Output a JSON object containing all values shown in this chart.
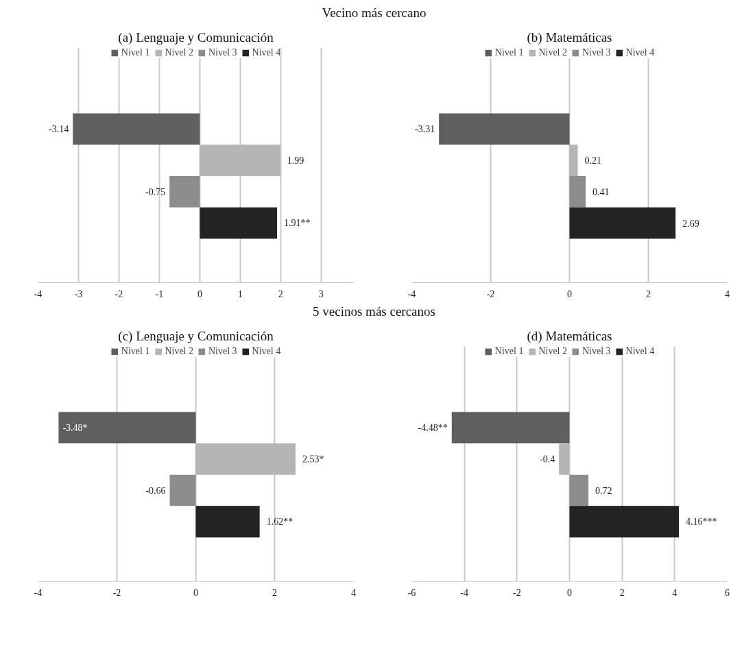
{
  "chart_data": [
    {
      "type": "bar",
      "orientation": "horizontal",
      "title": "(a) Lenguaje y Comunicación",
      "annotations": [
        "Vecino más cercano"
      ],
      "categories": [
        null
      ],
      "xlim": [
        -4,
        3.8
      ],
      "xticks": [
        -4,
        -3,
        -2,
        -1,
        0,
        1,
        2,
        3
      ],
      "grid": "x",
      "legend": "top",
      "tick_labels": "x",
      "series": [
        {
          "name": "Nivel 1",
          "color": "#5f5f5f",
          "values": [
            -3.14
          ],
          "value_labels": [
            "-3.14"
          ]
        },
        {
          "name": "Nivel 2",
          "color": "#b4b4b4",
          "values": [
            1.99
          ],
          "value_labels": [
            "1.99"
          ]
        },
        {
          "name": "Nivel 3",
          "color": "#8c8c8c",
          "values": [
            -0.75
          ],
          "value_labels": [
            "-0.75"
          ]
        },
        {
          "name": "Nivel 4",
          "color": "#232323",
          "values": [
            1.91
          ],
          "value_labels": [
            "1.91**"
          ]
        }
      ]
    },
    {
      "type": "bar",
      "orientation": "horizontal",
      "title": "(b) Matemáticas",
      "categories": [
        null
      ],
      "xlim": [
        -4,
        4
      ],
      "xticks": [
        -4,
        -2,
        0,
        2,
        4
      ],
      "grid": "x",
      "legend": "top",
      "tick_labels": "x",
      "series": [
        {
          "name": "Nivel 1",
          "color": "#5f5f5f",
          "values": [
            -3.31
          ],
          "value_labels": [
            "-3.31"
          ]
        },
        {
          "name": "Nivel 2",
          "color": "#b4b4b4",
          "values": [
            0.21
          ],
          "value_labels": [
            "0.21"
          ]
        },
        {
          "name": "Nivel 3",
          "color": "#8c8c8c",
          "values": [
            0.41
          ],
          "value_labels": [
            "0.41"
          ]
        },
        {
          "name": "Nivel 4",
          "color": "#232323",
          "values": [
            2.69
          ],
          "value_labels": [
            "2.69"
          ]
        }
      ]
    },
    {
      "type": "bar",
      "orientation": "horizontal",
      "title": "(c) Lenguaje y Comunicación",
      "annotations": [
        "5 vecinos más cercanos"
      ],
      "categories": [
        null
      ],
      "xlim": [
        -4,
        4
      ],
      "xticks": [
        -4,
        -2,
        0,
        2,
        4
      ],
      "grid": "x",
      "legend": "top",
      "tick_labels": "x",
      "series": [
        {
          "name": "Nivel 1",
          "color": "#5f5f5f",
          "values": [
            -3.48
          ],
          "value_labels": [
            "-3.48*"
          ]
        },
        {
          "name": "Nivel 2",
          "color": "#b4b4b4",
          "values": [
            2.53
          ],
          "value_labels": [
            "2.53*"
          ]
        },
        {
          "name": "Nivel 3",
          "color": "#8c8c8c",
          "values": [
            -0.66
          ],
          "value_labels": [
            "-0.66"
          ]
        },
        {
          "name": "Nivel 4",
          "color": "#232323",
          "values": [
            1.62
          ],
          "value_labels": [
            "1.62**"
          ]
        }
      ]
    },
    {
      "type": "bar",
      "orientation": "horizontal",
      "title": "(d) Matemáticas",
      "categories": [
        null
      ],
      "xlim": [
        -6,
        6
      ],
      "xticks": [
        -6,
        -4,
        -2,
        0,
        2,
        4,
        6
      ],
      "grid": "x",
      "legend": "top",
      "tick_labels": "x",
      "series": [
        {
          "name": "Nivel 1",
          "color": "#5f5f5f",
          "values": [
            -4.48
          ],
          "value_labels": [
            "-4.48**"
          ]
        },
        {
          "name": "Nivel 2",
          "color": "#b4b4b4",
          "values": [
            -0.4
          ],
          "value_labels": [
            "-0.4"
          ]
        },
        {
          "name": "Nivel 3",
          "color": "#8c8c8c",
          "values": [
            0.72
          ],
          "value_labels": [
            "0.72"
          ]
        },
        {
          "name": "Nivel 4",
          "color": "#232323",
          "values": [
            4.16
          ],
          "value_labels": [
            "4.16***"
          ]
        }
      ]
    }
  ]
}
